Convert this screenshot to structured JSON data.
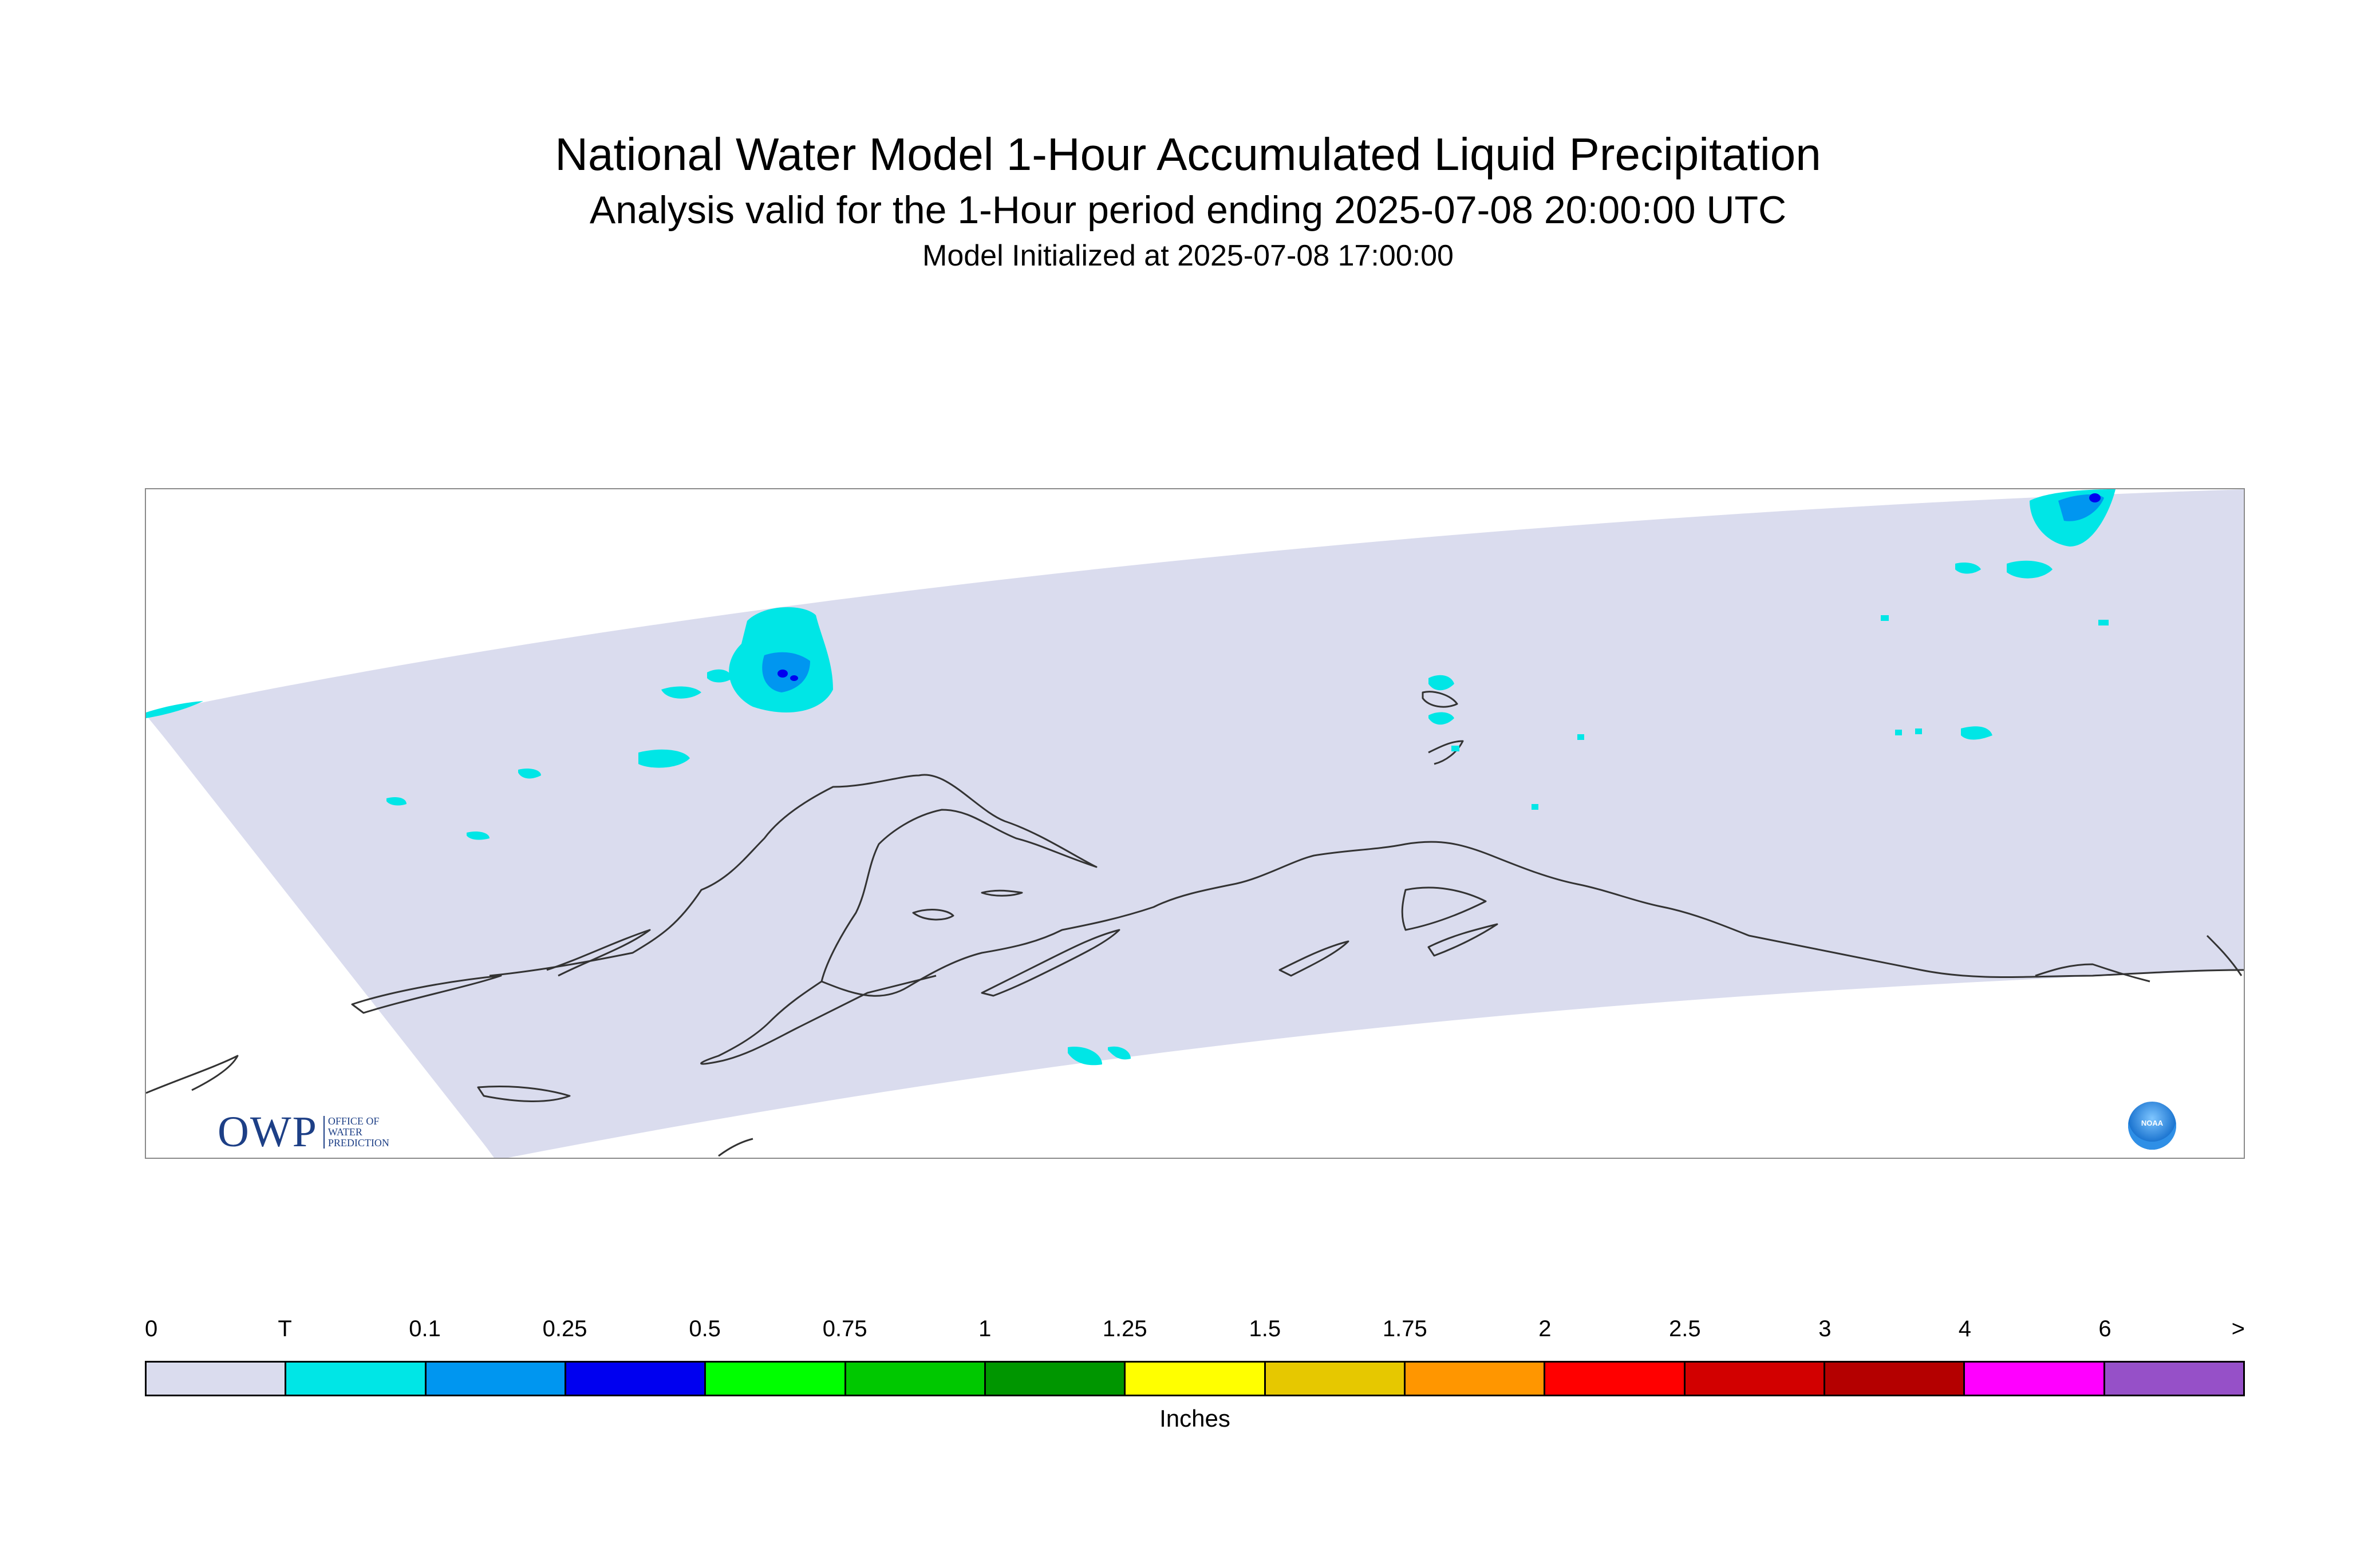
{
  "title": "National Water Model 1-Hour Accumulated Liquid Precipitation",
  "subtitle": "Analysis valid for the 1-Hour period ending 2025-07-08 20:00:00 UTC",
  "init_line": "Model Initialized at 2025-07-08 17:00:00",
  "logos": {
    "owp_big": "OWP",
    "owp_small_1": "OFFICE OF",
    "owp_small_2": "WATER",
    "owp_small_3": "PREDICTION",
    "noaa": "NOAA"
  },
  "legend": {
    "labels": [
      "0",
      "T",
      "0.1",
      "0.25",
      "0.5",
      "0.75",
      "1",
      "1.25",
      "1.5",
      "1.75",
      "2",
      "2.5",
      "3",
      "4",
      "6",
      ">"
    ],
    "colors": [
      "#dadcee",
      "#00e6e6",
      "#0096f0",
      "#0000f0",
      "#00ff00",
      "#00c800",
      "#009600",
      "#ffff00",
      "#e6c800",
      "#ff9600",
      "#ff0000",
      "#d20000",
      "#b40000",
      "#ff00ff",
      "#9650c8"
    ],
    "units": "Inches"
  },
  "colors": {
    "domain_fill": "#dadcee",
    "trace": "#00e6e6",
    "light_blue": "#0096f0",
    "blue": "#0000f0",
    "coastline": "#333333"
  }
}
